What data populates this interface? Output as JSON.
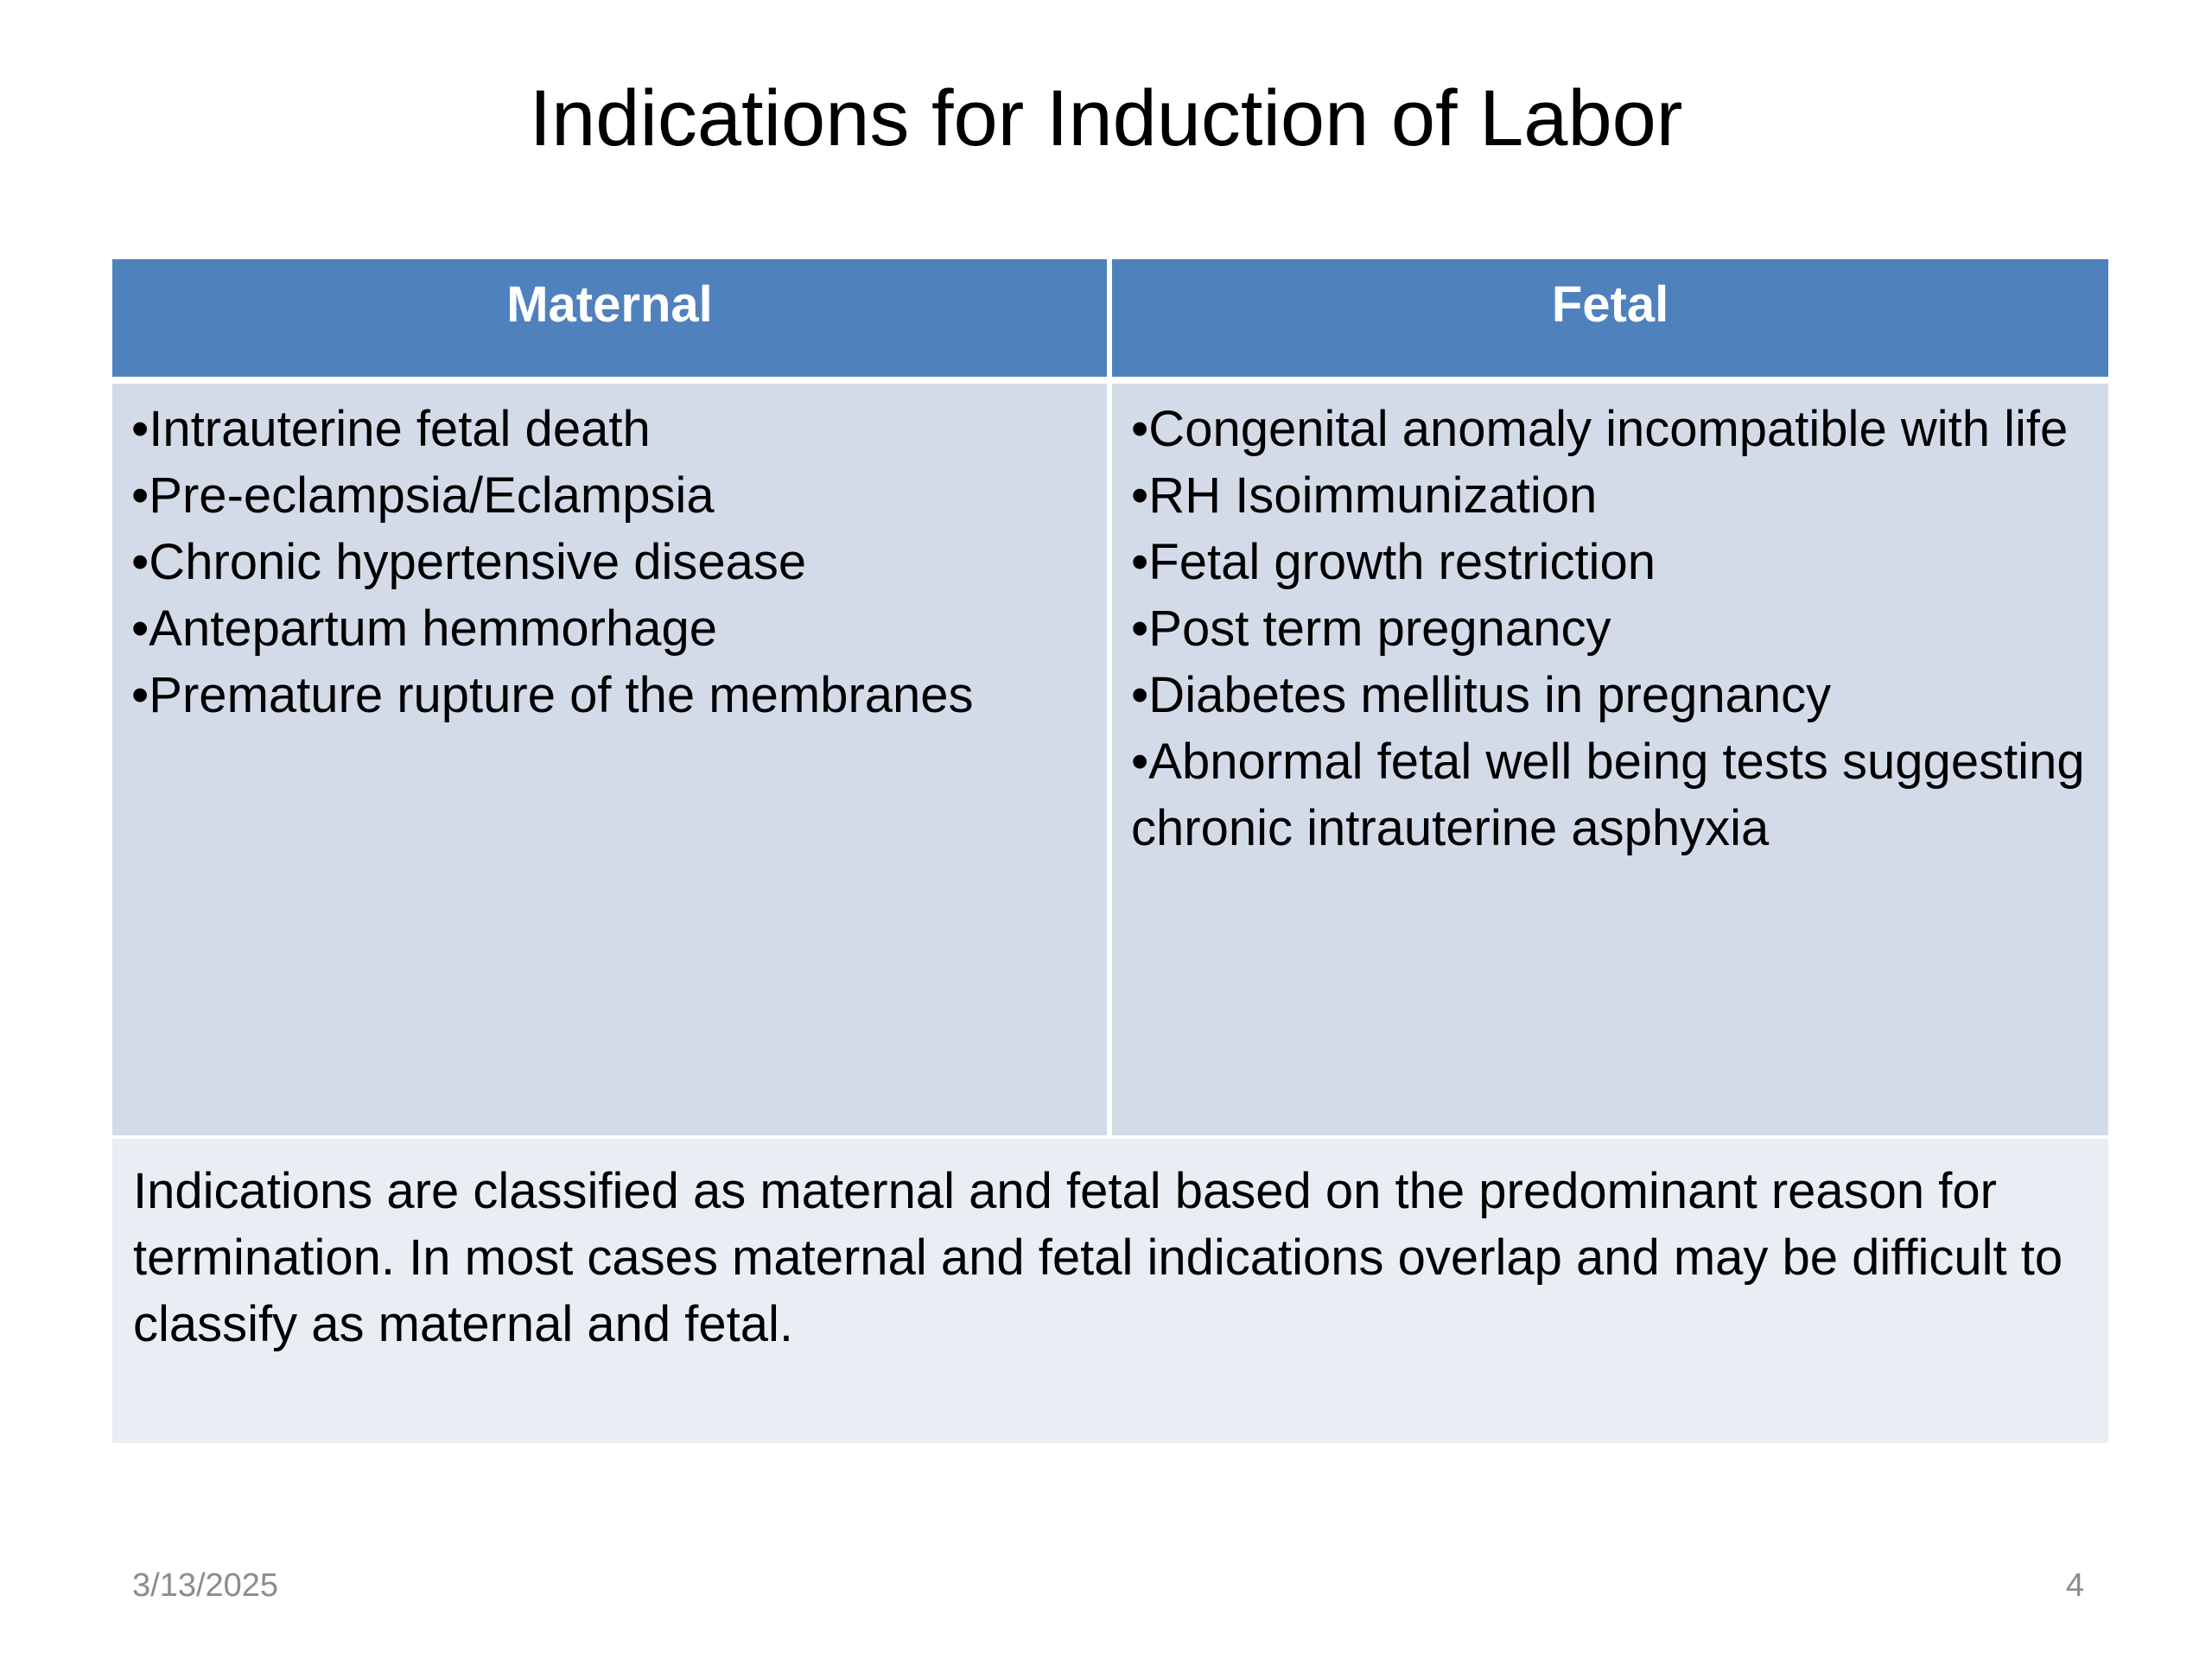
{
  "slide": {
    "title": "Indications for Induction of Labor",
    "table": {
      "columns": [
        {
          "header": "Maternal",
          "items": [
            "•Intrauterine fetal death",
            "•Pre-eclampsia/Eclampsia",
            "•Chronic hypertensive disease",
            "•Antepartum hemmorhage",
            "•Premature rupture of the membranes"
          ]
        },
        {
          "header": "Fetal",
          "items": [
            "•Congenital anomaly incompatible with life",
            "•RH Isoimmunization",
            "•Fetal growth restriction",
            "•Post term pregnancy",
            "•Diabetes mellitus in pregnancy",
            "•Abnormal fetal well being tests suggesting chronic intrauterine asphyxia"
          ]
        }
      ],
      "note": "Indications are classified as maternal and fetal based on the predominant reason for termination. In most cases maternal and fetal indications overlap and may be difficult to classify as maternal and fetal."
    },
    "footer": {
      "date": "3/13/2025",
      "page_number": "4"
    }
  },
  "colors": {
    "header_fill": "#4f81bd",
    "body_fill": "#d3dbe9",
    "note_fill": "#e9edf4",
    "footer_text": "#8c8c8c"
  }
}
